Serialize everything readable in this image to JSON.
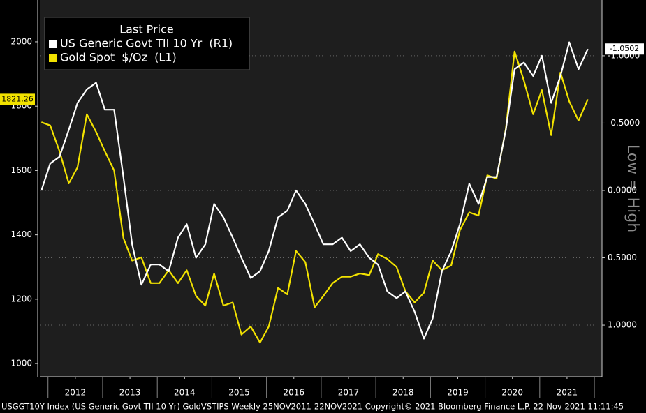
{
  "chart_data": {
    "type": "line",
    "legend_title": "Last Price",
    "annotation": "Low = High",
    "footer": "USGGT10Y Index (US Generic Govt TII 10 Yr) GoldVSTIPS  Weekly 25NOV2011-22NOV2021 Copyright© 2021 Bloomberg Finance L.P.  22-Nov-2021 11:11:45",
    "x": [
      2011.88,
      2012.04,
      2012.21,
      2012.38,
      2012.54,
      2012.71,
      2012.88,
      2013.04,
      2013.21,
      2013.38,
      2013.54,
      2013.71,
      2013.88,
      2014.04,
      2014.21,
      2014.38,
      2014.54,
      2014.71,
      2014.88,
      2015.04,
      2015.21,
      2015.38,
      2015.54,
      2015.71,
      2015.88,
      2016.04,
      2016.21,
      2016.38,
      2016.54,
      2016.71,
      2016.88,
      2017.04,
      2017.21,
      2017.38,
      2017.54,
      2017.71,
      2017.88,
      2018.04,
      2018.21,
      2018.38,
      2018.54,
      2018.71,
      2018.88,
      2019.04,
      2019.21,
      2019.38,
      2019.54,
      2019.71,
      2019.88,
      2020.04,
      2020.21,
      2020.38,
      2020.54,
      2020.71,
      2020.88,
      2021.04,
      2021.21,
      2021.38,
      2021.54,
      2021.71,
      2021.88
    ],
    "series": [
      {
        "name": "US Generic Govt TII 10 Yr  (R1)",
        "color": "#ffffff",
        "axis": "y2",
        "values": [
          0.0,
          -0.2,
          -0.25,
          -0.45,
          -0.65,
          -0.75,
          -0.8,
          -0.6,
          -0.6,
          -0.1,
          0.4,
          0.7,
          0.55,
          0.55,
          0.6,
          0.35,
          0.25,
          0.5,
          0.4,
          0.1,
          0.2,
          0.35,
          0.5,
          0.65,
          0.6,
          0.45,
          0.2,
          0.15,
          0.0,
          0.1,
          0.25,
          0.4,
          0.4,
          0.35,
          0.45,
          0.4,
          0.5,
          0.55,
          0.75,
          0.8,
          0.75,
          0.9,
          1.1,
          0.95,
          0.6,
          0.45,
          0.25,
          -0.05,
          0.1,
          -0.1,
          -0.1,
          -0.45,
          -0.9,
          -0.95,
          -0.85,
          -1.0,
          -0.65,
          -0.85,
          -1.1,
          -0.9,
          -1.0502
        ]
      },
      {
        "name": "Gold Spot  $/Oz  (L1)",
        "color": "#f2e200",
        "values": [
          1750,
          1740,
          1660,
          1560,
          1610,
          1775,
          1720,
          1660,
          1600,
          1390,
          1320,
          1330,
          1250,
          1250,
          1290,
          1250,
          1290,
          1210,
          1180,
          1280,
          1180,
          1190,
          1090,
          1115,
          1065,
          1115,
          1235,
          1215,
          1350,
          1315,
          1175,
          1210,
          1250,
          1270,
          1270,
          1280,
          1275,
          1340,
          1325,
          1300,
          1225,
          1190,
          1220,
          1320,
          1290,
          1305,
          1415,
          1470,
          1460,
          1585,
          1575,
          1730,
          1970,
          1880,
          1775,
          1850,
          1710,
          1905,
          1815,
          1755,
          1821.26
        ]
      }
    ],
    "xlim": [
      2011.85,
      2022.14
    ],
    "xticks": [
      {
        "value": 2012.5,
        "label": "2012"
      },
      {
        "value": 2013.5,
        "label": "2013"
      },
      {
        "value": 2014.5,
        "label": "2014"
      },
      {
        "value": 2015.5,
        "label": "2015"
      },
      {
        "value": 2016.5,
        "label": "2016"
      },
      {
        "value": 2017.5,
        "label": "2017"
      },
      {
        "value": 2018.5,
        "label": "2018"
      },
      {
        "value": 2019.5,
        "label": "2019"
      },
      {
        "value": 2020.5,
        "label": "2020"
      },
      {
        "value": 2021.5,
        "label": "2021"
      }
    ],
    "ylim": [
      959,
      2130
    ],
    "yticks": [
      1000,
      1200,
      1400,
      1600,
      1800,
      2000
    ],
    "y2lim": [
      1.383,
      -1.414
    ],
    "y2ticks": [
      {
        "value": -1,
        "label": "-1.0000"
      },
      {
        "value": -0.5,
        "label": "-0.5000"
      },
      {
        "value": 0,
        "label": "0.0000"
      },
      {
        "value": 0.5,
        "label": "0.5000"
      },
      {
        "value": 1,
        "label": "1.0000"
      }
    ],
    "grid": "y2"
  }
}
